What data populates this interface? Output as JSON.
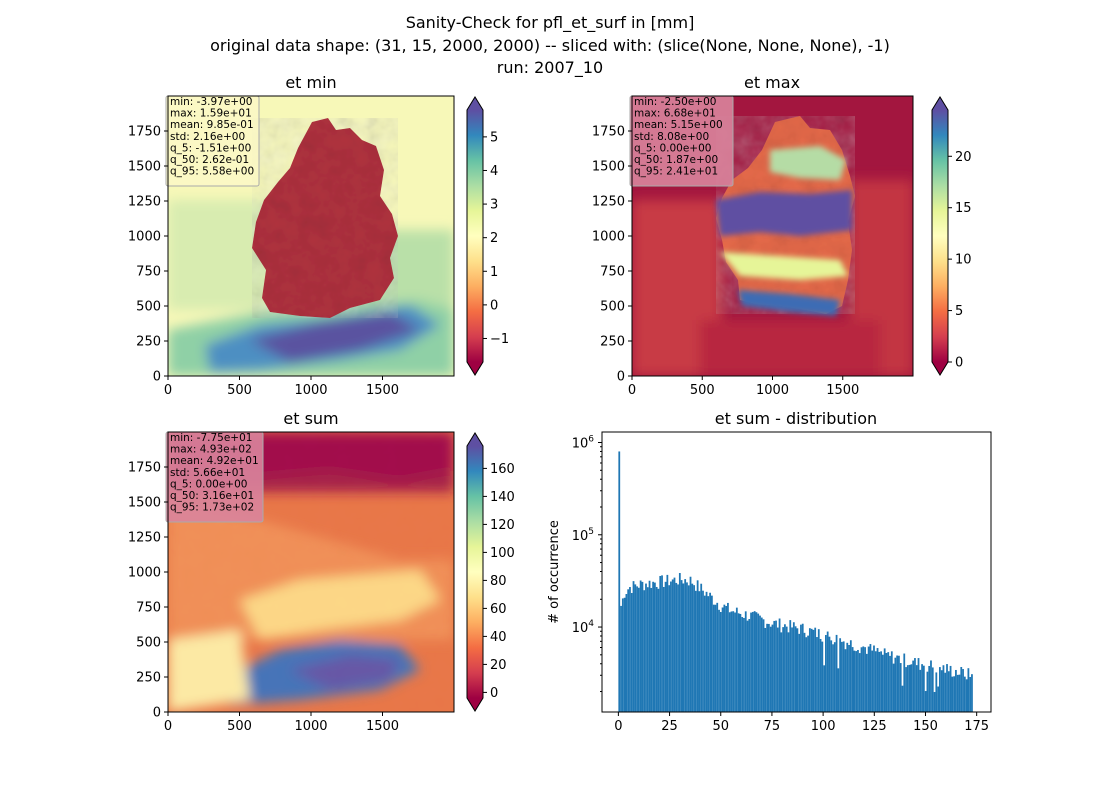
{
  "suptitle": {
    "line1": "Sanity-Check for pfl_et_surf in [mm]",
    "line2": "original data shape: (31, 15, 2000, 2000) -- sliced with: (slice(None, None, None), -1)",
    "line3": "run: 2007_10"
  },
  "chart_data": [
    {
      "type": "heatmap",
      "title": "et min",
      "xlim": [
        0,
        2000
      ],
      "ylim": [
        0,
        2000
      ],
      "xticks": [
        0,
        500,
        1000,
        1500
      ],
      "yticks": [
        0,
        250,
        500,
        750,
        1000,
        1250,
        1500,
        1750
      ],
      "colormap": "Spectral",
      "colorbar": {
        "vmin": -1.7,
        "vmax": 5.8,
        "ticks": [
          -1,
          0,
          1,
          2,
          3,
          4,
          5
        ],
        "extend": "both"
      },
      "stats": [
        "min: -3.97e+00",
        "max: 1.59e+01",
        "mean: 9.85e-01",
        "std: 2.16e+00",
        "q_5: -1.51e+00",
        "q_50: 2.62e-01",
        "q_95: 5.58e+00"
      ],
      "stats_box_color": "#fbf8c6"
    },
    {
      "type": "heatmap",
      "title": "et max",
      "xlim": [
        0,
        2000
      ],
      "ylim": [
        0,
        2000
      ],
      "xticks": [
        0,
        500,
        1000,
        1500
      ],
      "yticks": [
        0,
        250,
        500,
        750,
        1000,
        1250,
        1500,
        1750
      ],
      "colormap": "Spectral",
      "colorbar": {
        "vmin": 0,
        "vmax": 24.5,
        "ticks": [
          0,
          5,
          10,
          15,
          20
        ],
        "extend": "both"
      },
      "stats": [
        "min: -2.50e+00",
        "max: 6.68e+01",
        "mean: 5.15e+00",
        "std: 8.08e+00",
        "q_5: 0.00e+00",
        "q_50: 1.87e+00",
        "q_95: 2.41e+01"
      ],
      "stats_box_color": "#d9849c"
    },
    {
      "type": "heatmap",
      "title": "et sum",
      "xlim": [
        0,
        2000
      ],
      "ylim": [
        0,
        2000
      ],
      "xticks": [
        0,
        500,
        1000,
        1500
      ],
      "yticks": [
        0,
        250,
        500,
        750,
        1000,
        1250,
        1500,
        1750
      ],
      "colormap": "Spectral",
      "colorbar": {
        "vmin": -4,
        "vmax": 176,
        "ticks": [
          0,
          20,
          40,
          60,
          80,
          100,
          120,
          140,
          160
        ],
        "extend": "both"
      },
      "stats": [
        "min: -7.75e+01",
        "max: 4.93e+02",
        "mean: 4.92e+01",
        "std: 5.66e+01",
        "q_5: 0.00e+00",
        "q_50: 3.16e+01",
        "q_95: 1.73e+02"
      ],
      "stats_box_color": "#d9849c"
    },
    {
      "type": "bar",
      "title": "et sum - distribution",
      "ylabel": "# of occurrence",
      "yscale": "log",
      "xlim": [
        -8,
        182
      ],
      "ylim": [
        1200,
        1300000
      ],
      "xticks": [
        0,
        25,
        50,
        75,
        100,
        125,
        150,
        175
      ],
      "yticks": [
        10000,
        100000,
        1000000
      ],
      "color": "#1f77b4",
      "bin_width": 0.87,
      "x": [
        0,
        0.87,
        1.74,
        2.61,
        5,
        10,
        15,
        20,
        25,
        30,
        35,
        40,
        45,
        50,
        55,
        60,
        65,
        70,
        75,
        80,
        85,
        90,
        95,
        100,
        105,
        110,
        115,
        120,
        125,
        130,
        135,
        140,
        145,
        150,
        155,
        160,
        165,
        170,
        173
      ],
      "values": [
        800000,
        17000,
        20000,
        24000,
        27000,
        29000,
        30000,
        31000,
        32000,
        33000,
        32000,
        26000,
        21000,
        17000,
        15000,
        14000,
        13000,
        12000,
        11000,
        10500,
        10000,
        9500,
        8800,
        8200,
        7600,
        7000,
        6500,
        6000,
        5500,
        5000,
        4700,
        4400,
        4100,
        3900,
        3700,
        3500,
        3300,
        3100,
        3000
      ]
    }
  ]
}
